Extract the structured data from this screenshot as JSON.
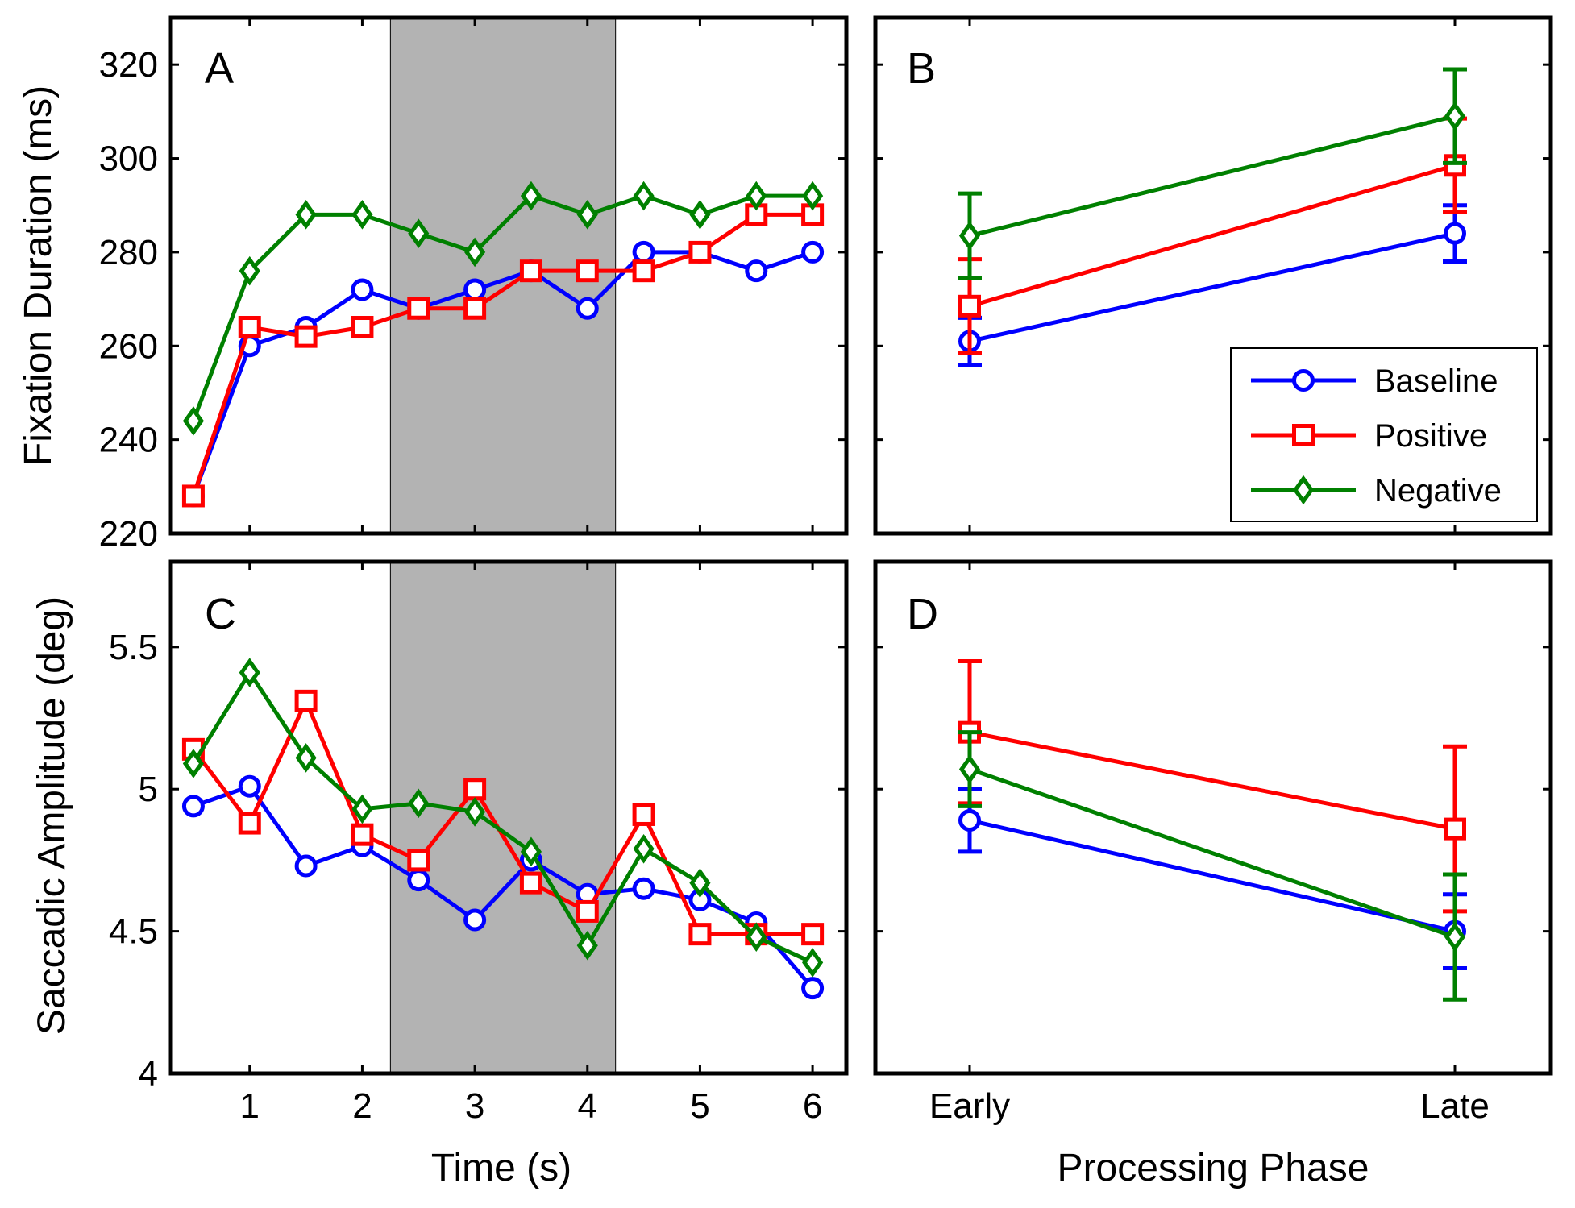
{
  "colors": {
    "Baseline": "#0000ff",
    "Positive": "#ff0000",
    "Negative": "#008000",
    "shade": "#b3b3b3"
  },
  "chart_data": [
    {
      "panel": "A",
      "type": "line",
      "ylabel": "Fixation Duration (ms)",
      "xlabel": "",
      "xlim": [
        0.3,
        6.3
      ],
      "ylim": [
        220,
        330
      ],
      "yticks": [
        220,
        240,
        260,
        280,
        300,
        320
      ],
      "xticks": [
        1,
        2,
        3,
        4,
        5,
        6
      ],
      "shaded_interval": [
        2.25,
        4.25
      ],
      "x": [
        0.5,
        1,
        1.5,
        2,
        2.5,
        3,
        3.5,
        4,
        4.5,
        5,
        5.5,
        6
      ],
      "series": [
        {
          "name": "Baseline",
          "marker": "circle",
          "values": [
            228,
            260,
            264,
            272,
            268,
            272,
            276,
            268,
            280,
            280,
            276,
            280
          ]
        },
        {
          "name": "Positive",
          "marker": "square",
          "values": [
            228,
            264,
            262,
            264,
            268,
            268,
            276,
            276,
            276,
            280,
            288,
            288
          ]
        },
        {
          "name": "Negative",
          "marker": "diamond",
          "values": [
            244,
            276,
            288,
            288,
            284,
            280,
            292,
            288,
            292,
            288,
            292,
            292
          ]
        }
      ]
    },
    {
      "panel": "B",
      "type": "line",
      "ylabel": "",
      "xlabel": "",
      "ylim": [
        220,
        330
      ],
      "categories": [
        "Early",
        "Late"
      ],
      "legend_position": "bottom-right",
      "legend": [
        "Baseline",
        "Positive",
        "Negative"
      ],
      "series": [
        {
          "name": "Baseline",
          "marker": "circle",
          "values": [
            261,
            284
          ],
          "errors": [
            5,
            6
          ]
        },
        {
          "name": "Positive",
          "marker": "square",
          "values": [
            268.5,
            298.5
          ],
          "errors": [
            10,
            10
          ]
        },
        {
          "name": "Negative",
          "marker": "diamond",
          "values": [
            283.5,
            309
          ],
          "errors": [
            9,
            10
          ]
        }
      ]
    },
    {
      "panel": "C",
      "type": "line",
      "ylabel": "Saccadic Amplitude (deg)",
      "xlabel": "Time (s)",
      "xlim": [
        0.3,
        6.3
      ],
      "ylim": [
        4,
        5.8
      ],
      "yticks": [
        4,
        4.5,
        5,
        5.5
      ],
      "ytick_labels": [
        "4",
        "4.5",
        "5",
        "5.5"
      ],
      "xticks": [
        1,
        2,
        3,
        4,
        5,
        6
      ],
      "shaded_interval": [
        2.25,
        4.25
      ],
      "x": [
        0.5,
        1,
        1.5,
        2,
        2.5,
        3,
        3.5,
        4,
        4.5,
        5,
        5.5,
        6
      ],
      "series": [
        {
          "name": "Baseline",
          "marker": "circle",
          "values": [
            4.94,
            5.01,
            4.73,
            4.8,
            4.68,
            4.54,
            4.75,
            4.63,
            4.65,
            4.61,
            4.53,
            4.3
          ]
        },
        {
          "name": "Positive",
          "marker": "square",
          "values": [
            5.14,
            4.88,
            5.31,
            4.84,
            4.75,
            5.0,
            4.67,
            4.57,
            4.91,
            4.49,
            4.49,
            4.49
          ]
        },
        {
          "name": "Negative",
          "marker": "diamond",
          "values": [
            5.09,
            5.41,
            5.11,
            4.93,
            4.95,
            4.92,
            4.78,
            4.45,
            4.79,
            4.67,
            4.48,
            4.39
          ]
        }
      ]
    },
    {
      "panel": "D",
      "type": "line",
      "ylabel": "",
      "xlabel": "Processing Phase",
      "ylim": [
        4,
        5.8
      ],
      "categories": [
        "Early",
        "Late"
      ],
      "series": [
        {
          "name": "Baseline",
          "marker": "circle",
          "values": [
            4.89,
            4.5
          ],
          "errors": [
            0.11,
            0.13
          ]
        },
        {
          "name": "Positive",
          "marker": "square",
          "values": [
            5.2,
            4.86
          ],
          "errors": [
            0.25,
            0.29
          ]
        },
        {
          "name": "Negative",
          "marker": "diamond",
          "values": [
            5.07,
            4.48
          ],
          "errors": [
            0.13,
            0.22
          ]
        }
      ]
    }
  ]
}
